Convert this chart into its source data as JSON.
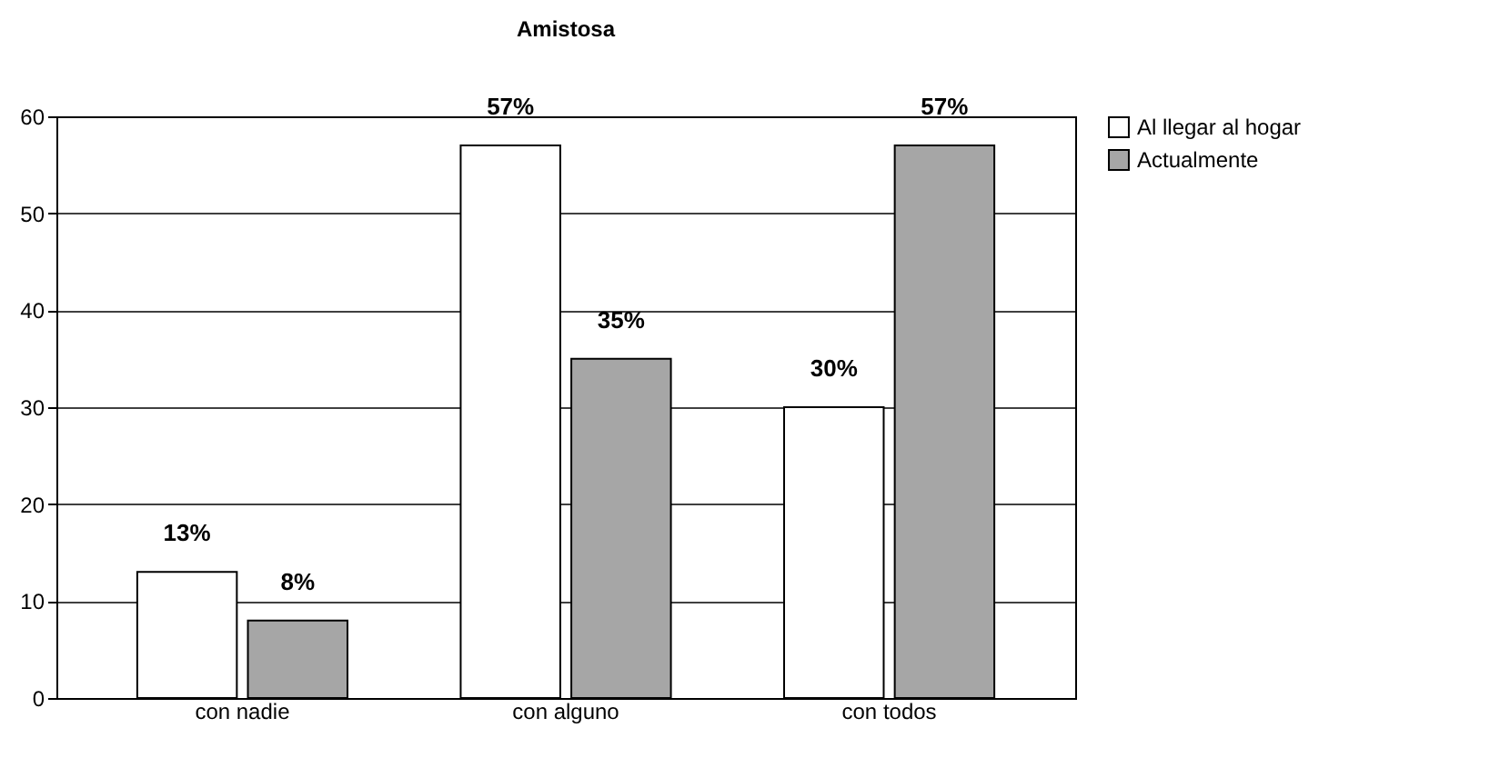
{
  "chart_data": {
    "type": "bar",
    "title": "Amistosa",
    "categories": [
      "con nadie",
      "con alguno",
      "con todos"
    ],
    "series": [
      {
        "name": "Al llegar al hogar",
        "color": "#ffffff",
        "values": [
          13,
          57,
          30
        ],
        "value_labels": [
          "13%",
          "57%",
          "30%"
        ]
      },
      {
        "name": "Actualmente",
        "color": "#a6a6a6",
        "values": [
          8,
          35,
          57
        ],
        "value_labels": [
          "8%",
          "35%",
          "57%"
        ]
      }
    ],
    "ylim": [
      0,
      60
    ],
    "yticks": [
      0,
      10,
      20,
      30,
      40,
      50,
      60
    ],
    "grid": "y",
    "legend": "right"
  }
}
